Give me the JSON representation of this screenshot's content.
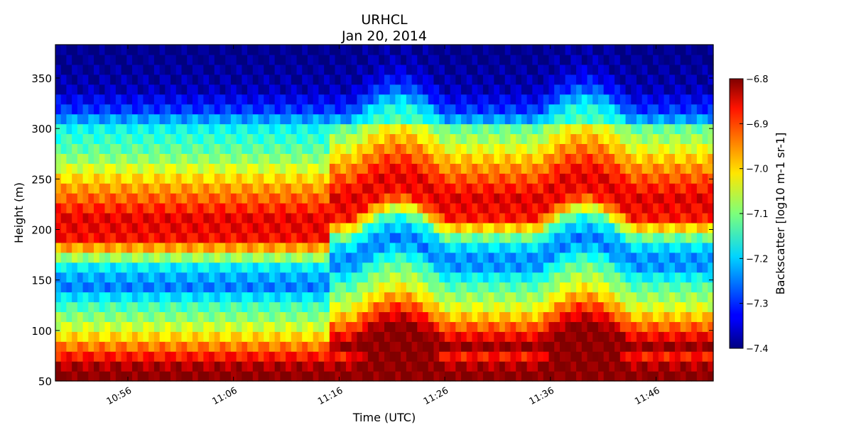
{
  "chart_data": {
    "type": "heatmap",
    "title": "URHCL",
    "subtitle": "Jan 20, 2014",
    "xlabel": "Time (UTC)",
    "ylabel": "Height (m)",
    "x_tick_labels": [
      "10:56",
      "11:06",
      "11:16",
      "11:26",
      "11:36",
      "11:46"
    ],
    "y_ticks": [
      50,
      100,
      150,
      200,
      250,
      300,
      350
    ],
    "ylim": [
      50,
      383
    ],
    "colorbar": {
      "label": "Backscatter [log10 m-1 sr-1]",
      "range": [
        -7.4,
        -6.8
      ],
      "ticks": [
        "−6.8",
        "−6.9",
        "−7.0",
        "−7.1",
        "−7.2",
        "−7.3",
        "−7.4"
      ],
      "colormap": "jet"
    },
    "grid": false,
    "bands": [
      {
        "height": 60,
        "value": -6.8
      },
      {
        "height": 100,
        "value": -7.04
      },
      {
        "height": 125,
        "value": -7.14
      },
      {
        "height": 145,
        "value": -7.26
      },
      {
        "height": 165,
        "value": -7.17
      },
      {
        "height": 190,
        "value": -6.88
      },
      {
        "height": 210,
        "value": -6.86
      },
      {
        "height": 245,
        "value": -6.98
      },
      {
        "height": 275,
        "value": -7.11
      },
      {
        "height": 300,
        "value": -7.17
      },
      {
        "height": 320,
        "value": -7.3
      },
      {
        "height": 340,
        "value": -7.37
      },
      {
        "height": 375,
        "value": -7.4
      }
    ]
  }
}
